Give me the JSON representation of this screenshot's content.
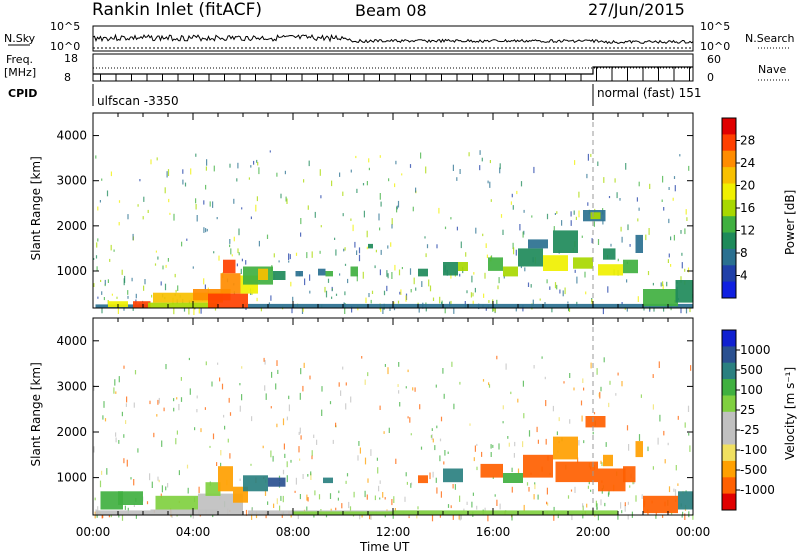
{
  "header": {
    "station": "Rankin Inlet (fitACF)",
    "beam": "Beam 08",
    "date": "27/Jun/2015"
  },
  "top_panels": {
    "nsky_label": "N.Sky",
    "nsky_ticks": [
      "10^5",
      "10^0"
    ],
    "nsearch_label": "N.Search",
    "nsearch_ticks": [
      "10^5",
      "10^0"
    ],
    "freq_label_1": "Freq.",
    "freq_label_2": "[MHz]",
    "freq_ticks": [
      "18",
      "8"
    ],
    "nave_label": "Nave",
    "nave_ticks": [
      "60",
      "0"
    ],
    "cpid_label": "CPID",
    "cpid_segments": [
      {
        "label": "ulfscan -3350",
        "start_hour": 0,
        "end_hour": 20
      },
      {
        "label": "normal (fast) 151",
        "start_hour": 20,
        "end_hour": 24
      }
    ]
  },
  "chart_data": [
    {
      "type": "heatmap",
      "title": "",
      "quantity": "Power",
      "xlabel": "",
      "ylabel": "Slant Range [km]",
      "xlim_hours": [
        0,
        24
      ],
      "ylim": [
        180,
        4500
      ],
      "y_ticks": [
        1000,
        2000,
        3000,
        4000
      ],
      "colorbar_label": "Power [dB]",
      "colorbar_ticks": [
        "28",
        "24",
        "20",
        "16",
        "12",
        "8",
        "4"
      ],
      "colorbar_colors": [
        "#e00000",
        "#ff4000",
        "#ff8c00",
        "#f8c000",
        "#f0f000",
        "#a8d800",
        "#40b040",
        "#1e8a5a",
        "#2a7090",
        "#2040a8",
        "#1020e0"
      ],
      "cells": [
        {
          "h0": 0.1,
          "h1": 2.2,
          "r0": 180,
          "r1": 260,
          "v": 6
        },
        {
          "h0": 0.6,
          "h1": 1.4,
          "r0": 200,
          "r1": 330,
          "v": 18
        },
        {
          "h0": 1.6,
          "h1": 2.3,
          "r0": 180,
          "r1": 330,
          "v": 28
        },
        {
          "h0": 2.2,
          "h1": 5.0,
          "r0": 180,
          "r1": 300,
          "v": 16
        },
        {
          "h0": 2.4,
          "h1": 5.2,
          "r0": 300,
          "r1": 520,
          "v": 22
        },
        {
          "h0": 4.0,
          "h1": 5.5,
          "r0": 350,
          "r1": 600,
          "v": 26
        },
        {
          "h0": 4.6,
          "h1": 6.2,
          "r0": 180,
          "r1": 500,
          "v": 29
        },
        {
          "h0": 5.1,
          "h1": 5.9,
          "r0": 500,
          "r1": 950,
          "v": 24
        },
        {
          "h0": 5.2,
          "h1": 5.7,
          "r0": 950,
          "r1": 1250,
          "v": 28
        },
        {
          "h0": 5.9,
          "h1": 6.6,
          "r0": 500,
          "r1": 900,
          "v": 20
        },
        {
          "h0": 6.0,
          "h1": 7.2,
          "r0": 700,
          "r1": 1100,
          "v": 13
        },
        {
          "h0": 6.6,
          "h1": 7.0,
          "r0": 800,
          "r1": 1050,
          "v": 22
        },
        {
          "h0": 7.2,
          "h1": 7.7,
          "r0": 800,
          "r1": 1000,
          "v": 10
        },
        {
          "h0": 6.2,
          "h1": 24,
          "r0": 180,
          "r1": 270,
          "v": 6
        },
        {
          "h0": 8.1,
          "h1": 8.4,
          "r0": 880,
          "r1": 1000,
          "v": 8
        },
        {
          "h0": 9.0,
          "h1": 9.3,
          "r0": 900,
          "r1": 1050,
          "v": 8
        },
        {
          "h0": 9.3,
          "h1": 9.6,
          "r0": 880,
          "r1": 1000,
          "v": 14
        },
        {
          "h0": 10.3,
          "h1": 10.6,
          "r0": 880,
          "r1": 1100,
          "v": 12
        },
        {
          "h0": 11.0,
          "h1": 11.2,
          "r0": 1500,
          "r1": 1600,
          "v": 9
        },
        {
          "h0": 13.0,
          "h1": 13.4,
          "r0": 880,
          "r1": 1050,
          "v": 9
        },
        {
          "h0": 14.0,
          "h1": 14.6,
          "r0": 900,
          "r1": 1200,
          "v": 10
        },
        {
          "h0": 14.6,
          "h1": 15.0,
          "r0": 1000,
          "r1": 1200,
          "v": 17
        },
        {
          "h0": 15.8,
          "h1": 16.4,
          "r0": 1000,
          "r1": 1300,
          "v": 12
        },
        {
          "h0": 16.4,
          "h1": 17.0,
          "r0": 880,
          "r1": 1100,
          "v": 16
        },
        {
          "h0": 17.0,
          "h1": 18.0,
          "r0": 1100,
          "r1": 1500,
          "v": 10
        },
        {
          "h0": 17.4,
          "h1": 18.2,
          "r0": 1500,
          "r1": 1700,
          "v": 8
        },
        {
          "h0": 18.0,
          "h1": 19.0,
          "r0": 1000,
          "r1": 1350,
          "v": 18
        },
        {
          "h0": 18.4,
          "h1": 19.4,
          "r0": 1400,
          "r1": 1900,
          "v": 10
        },
        {
          "h0": 19.2,
          "h1": 20.0,
          "r0": 1050,
          "r1": 1300,
          "v": 15
        },
        {
          "h0": 19.6,
          "h1": 20.5,
          "r0": 2100,
          "r1": 2350,
          "v": 8
        },
        {
          "h0": 19.9,
          "h1": 20.3,
          "r0": 2150,
          "r1": 2300,
          "v": 16
        },
        {
          "h0": 20.2,
          "h1": 21.2,
          "r0": 900,
          "r1": 1150,
          "v": 19
        },
        {
          "h0": 20.4,
          "h1": 20.9,
          "r0": 1250,
          "r1": 1500,
          "v": 10
        },
        {
          "h0": 21.2,
          "h1": 21.8,
          "r0": 950,
          "r1": 1250,
          "v": 12
        },
        {
          "h0": 21.7,
          "h1": 22.0,
          "r0": 1400,
          "r1": 1800,
          "v": 8
        },
        {
          "h0": 22.0,
          "h1": 23.4,
          "r0": 220,
          "r1": 600,
          "v": 14
        },
        {
          "h0": 23.3,
          "h1": 24.0,
          "r0": 300,
          "r1": 800,
          "v": 9
        }
      ]
    },
    {
      "type": "heatmap",
      "title": "",
      "quantity": "Velocity",
      "xlabel": "Time UT",
      "ylabel": "Slant Range [km]",
      "xlim_hours": [
        0,
        24
      ],
      "x_ticks": [
        "00:00",
        "04:00",
        "08:00",
        "12:00",
        "16:00",
        "20:00",
        "00:00"
      ],
      "ylim": [
        180,
        4500
      ],
      "y_ticks": [
        1000,
        2000,
        3000,
        4000
      ],
      "colorbar_label": "Velocity [m s⁻¹]",
      "colorbar_ticks": [
        "1000",
        "500",
        "100",
        "25",
        "-25",
        "-100",
        "-500",
        "-1000"
      ],
      "colorbar_colors": [
        "#1020d0",
        "#2a5090",
        "#2a8080",
        "#40b040",
        "#80d040",
        "#c0c0c0",
        "#c0c0c0",
        "#f0e060",
        "#ffa000",
        "#ff6000",
        "#e00000"
      ],
      "cells": [
        {
          "h0": 0.1,
          "h1": 2.3,
          "r0": 180,
          "r1": 280,
          "v": 30
        },
        {
          "h0": 0.3,
          "h1": 1.2,
          "r0": 300,
          "r1": 700,
          "v": 150
        },
        {
          "h0": 1.0,
          "h1": 2.0,
          "r0": 400,
          "r1": 700,
          "v": 110
        },
        {
          "h0": 2.3,
          "h1": 5.0,
          "r0": 180,
          "r1": 300,
          "v": 0
        },
        {
          "h0": 2.5,
          "h1": 4.2,
          "r0": 300,
          "r1": 600,
          "v": 60
        },
        {
          "h0": 4.2,
          "h1": 6.0,
          "r0": 180,
          "r1": 650,
          "v": 0
        },
        {
          "h0": 4.5,
          "h1": 5.1,
          "r0": 600,
          "r1": 900,
          "v": 60
        },
        {
          "h0": 5.0,
          "h1": 5.6,
          "r0": 700,
          "r1": 1250,
          "v": -80
        },
        {
          "h0": 5.6,
          "h1": 6.2,
          "r0": 450,
          "r1": 800,
          "v": -80
        },
        {
          "h0": 6.0,
          "h1": 7.0,
          "r0": 700,
          "r1": 1050,
          "v": 300
        },
        {
          "h0": 7.0,
          "h1": 7.7,
          "r0": 800,
          "r1": 1000,
          "v": 600
        },
        {
          "h0": 6.2,
          "h1": 14,
          "r0": 180,
          "r1": 280,
          "v": 0
        },
        {
          "h0": 8.0,
          "h1": 12.0,
          "r0": 180,
          "r1": 260,
          "v": 60
        },
        {
          "h0": 12.0,
          "h1": 21.0,
          "r0": 180,
          "r1": 280,
          "v": 60
        },
        {
          "h0": 9.2,
          "h1": 9.6,
          "r0": 880,
          "r1": 1000,
          "v": 400
        },
        {
          "h0": 13.0,
          "h1": 13.4,
          "r0": 880,
          "r1": 1050,
          "v": -150
        },
        {
          "h0": 14.0,
          "h1": 14.8,
          "r0": 900,
          "r1": 1200,
          "v": 400
        },
        {
          "h0": 15.5,
          "h1": 16.4,
          "r0": 1000,
          "r1": 1300,
          "v": -150
        },
        {
          "h0": 16.4,
          "h1": 17.2,
          "r0": 880,
          "r1": 1100,
          "v": 200
        },
        {
          "h0": 17.2,
          "h1": 18.4,
          "r0": 1000,
          "r1": 1500,
          "v": -150
        },
        {
          "h0": 18.4,
          "h1": 19.4,
          "r0": 1400,
          "r1": 1900,
          "v": -80
        },
        {
          "h0": 18.5,
          "h1": 20.2,
          "r0": 900,
          "r1": 1350,
          "v": -200
        },
        {
          "h0": 19.7,
          "h1": 20.5,
          "r0": 2100,
          "r1": 2350,
          "v": -200
        },
        {
          "h0": 20.2,
          "h1": 21.3,
          "r0": 700,
          "r1": 1200,
          "v": -200
        },
        {
          "h0": 20.4,
          "h1": 20.8,
          "r0": 1250,
          "r1": 1500,
          "v": -80
        },
        {
          "h0": 21.2,
          "h1": 21.7,
          "r0": 900,
          "r1": 1250,
          "v": -150
        },
        {
          "h0": 21.7,
          "h1": 22.0,
          "r0": 1450,
          "r1": 1800,
          "v": -100
        },
        {
          "h0": 22.0,
          "h1": 23.4,
          "r0": 220,
          "r1": 600,
          "v": -200
        },
        {
          "h0": 23.4,
          "h1": 24.0,
          "r0": 300,
          "r1": 700,
          "v": 300
        }
      ]
    }
  ]
}
